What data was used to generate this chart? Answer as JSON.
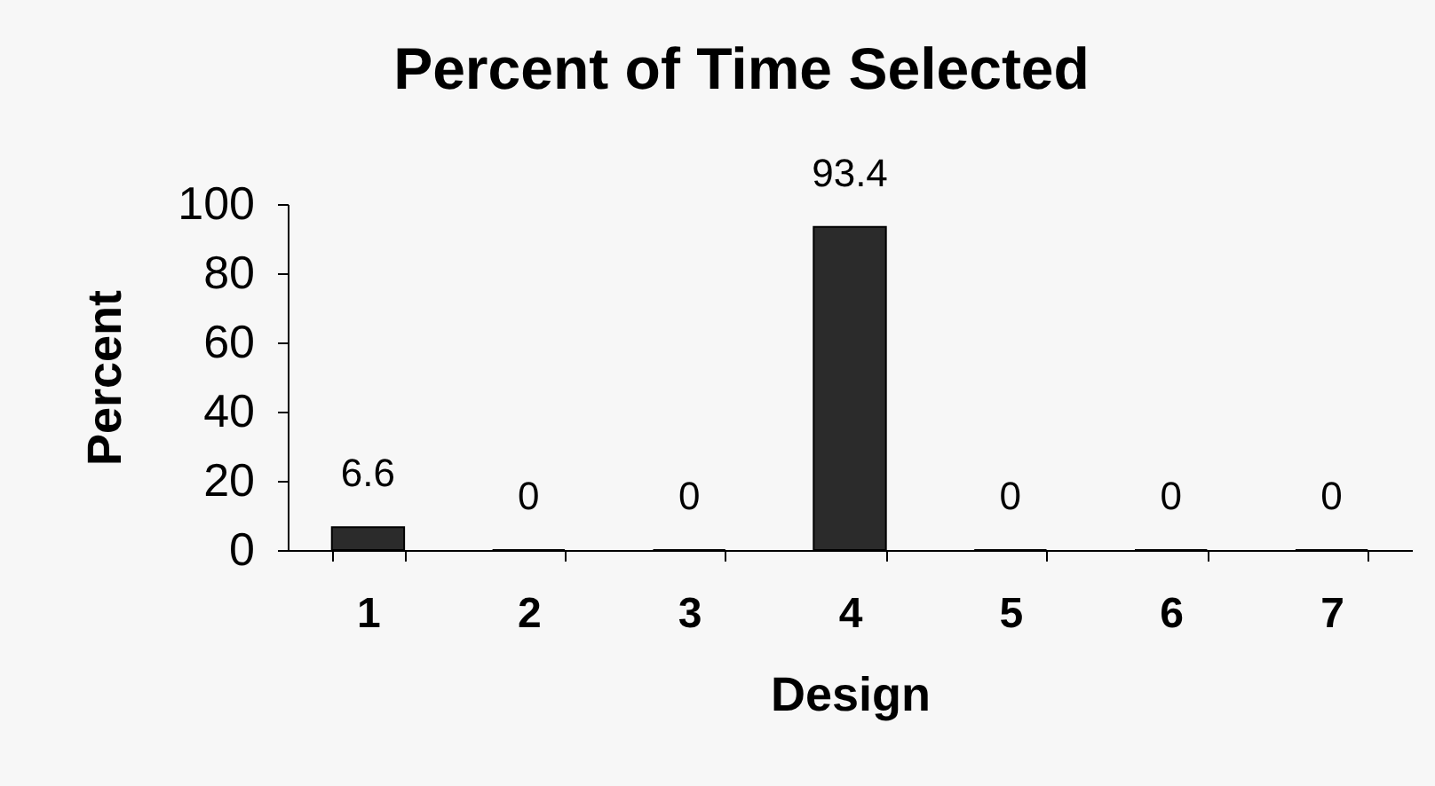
{
  "chart_data": {
    "type": "bar",
    "title": "Percent of Time Selected",
    "xlabel": "Design",
    "ylabel": "Percent",
    "categories": [
      "1",
      "2",
      "3",
      "4",
      "5",
      "6",
      "7"
    ],
    "values": [
      6.6,
      0,
      0,
      93.4,
      0,
      0,
      0
    ],
    "color": "#2b2b2b",
    "ylim": [
      0,
      100
    ],
    "yticks": [
      0,
      20,
      40,
      60,
      80,
      100
    ],
    "data_labels": true
  }
}
